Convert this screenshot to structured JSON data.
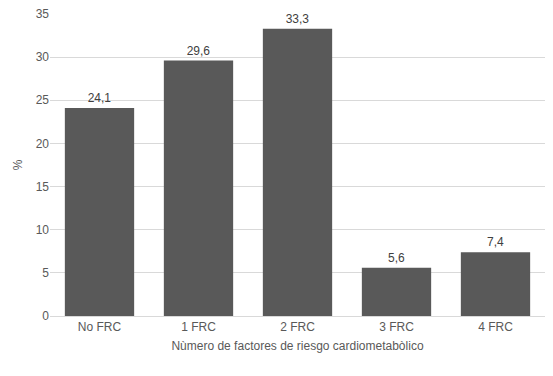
{
  "chart_data": {
    "type": "bar",
    "x_label": "Nùmero de factores de riesgo cardiometabòlico",
    "y_label": "%",
    "categories": [
      "No FRC",
      "1 FRC",
      "2 FRC",
      "3 FRC",
      "4 FRC"
    ],
    "values": [
      24.1,
      29.6,
      33.3,
      5.6,
      7.4
    ],
    "value_labels": [
      "24,1",
      "29,6",
      "33,3",
      "5,6",
      "7,4"
    ],
    "color": "#595959",
    "ylim": [
      0,
      35
    ],
    "yticks": [
      0,
      5,
      10,
      15,
      20,
      25,
      30,
      35
    ],
    "grid": true,
    "data_labels": true
  }
}
